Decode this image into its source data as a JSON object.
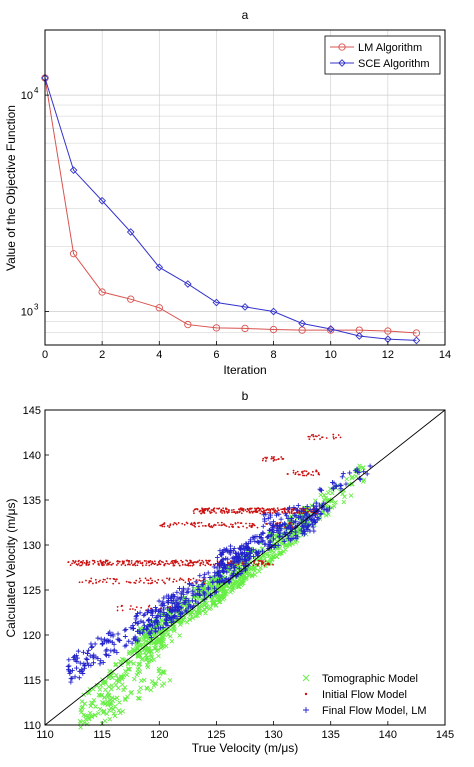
{
  "colors": {
    "lm": "#d9534f",
    "sce": "#3333cc",
    "tomographic": "#66ee44",
    "initial_flow": "#cc1111",
    "final_flow": "#2222cc",
    "grid": "#cccccc",
    "axis": "#000000",
    "identity_line": "#000000"
  },
  "chart_data": [
    {
      "id": "a",
      "type": "line",
      "title": "a",
      "xlabel": "Iteration",
      "ylabel": "Value of the Objective Function",
      "xlim": [
        0,
        14
      ],
      "ylim": [
        700,
        20000
      ],
      "yscale": "log",
      "xticks": [
        0,
        2,
        4,
        6,
        8,
        10,
        12,
        14
      ],
      "ytick_labels": [
        {
          "value": 1000,
          "base": "10",
          "exp": "3"
        },
        {
          "value": 10000,
          "base": "10",
          "exp": "4"
        }
      ],
      "grid": true,
      "legend_position": "top-right",
      "series": [
        {
          "name": "LM Algorithm",
          "marker": "circle",
          "color_key": "lm",
          "x": [
            0,
            1,
            2,
            3,
            4,
            5,
            6,
            7,
            8,
            9,
            10,
            11,
            12,
            13
          ],
          "y": [
            12000,
            1850,
            1230,
            1140,
            1040,
            870,
            840,
            835,
            825,
            820,
            820,
            820,
            812,
            795
          ]
        },
        {
          "name": "SCE Algorithm",
          "marker": "diamond",
          "color_key": "sce",
          "x": [
            0,
            1,
            2,
            3,
            4,
            5,
            6,
            7,
            8,
            9,
            10,
            11,
            12,
            13
          ],
          "y": [
            12000,
            4500,
            3250,
            2330,
            1600,
            1340,
            1100,
            1050,
            1000,
            880,
            830,
            770,
            745,
            735
          ]
        }
      ]
    },
    {
      "id": "b",
      "type": "scatter",
      "title": "b",
      "xlabel": "True Velocity (m/μs)",
      "ylabel": "Calculated Velocity (m/μs)",
      "xlim": [
        110,
        145
      ],
      "ylim": [
        110,
        145
      ],
      "xticks": [
        110,
        115,
        120,
        125,
        130,
        135,
        140,
        145
      ],
      "yticks": [
        110,
        115,
        120,
        125,
        130,
        135,
        140,
        145
      ],
      "grid": false,
      "legend_position": "bottom-right",
      "identity_line": [
        [
          110,
          110
        ],
        [
          145,
          145
        ]
      ],
      "series": [
        {
          "name": "Tomographic Model",
          "marker": "x",
          "color_key": "tomographic",
          "clusters": [
            {
              "x": [
                113,
                122
              ],
              "y": [
                111,
                122
              ],
              "n": 220
            },
            {
              "x": [
                118,
                128
              ],
              "y": [
                119,
                128
              ],
              "n": 350
            },
            {
              "x": [
                124,
                133
              ],
              "y": [
                124,
                133
              ],
              "n": 300
            },
            {
              "x": [
                131,
                138
              ],
              "y": [
                131,
                138
              ],
              "n": 90
            },
            {
              "x": [
                115,
                121
              ],
              "y": [
                111,
                116
              ],
              "n": 50
            }
          ]
        },
        {
          "name": "Initial Flow Model",
          "marker": "dot",
          "color_key": "initial_flow",
          "bands": [
            {
              "x": [
                123,
                134
              ],
              "y": 133.8,
              "n": 260
            },
            {
              "x": [
                120,
                132
              ],
              "y": 132.2,
              "n": 120
            },
            {
              "x": [
                112,
                130
              ],
              "y": 128.0,
              "n": 280
            },
            {
              "x": [
                113,
                124
              ],
              "y": 126.0,
              "n": 80
            },
            {
              "x": [
                116,
                122
              ],
              "y": 123.0,
              "n": 30
            },
            {
              "x": [
                131,
                134
              ],
              "y": 138.0,
              "n": 30
            },
            {
              "x": [
                129,
                131
              ],
              "y": 139.5,
              "n": 20
            },
            {
              "x": [
                133,
                136
              ],
              "y": 142.0,
              "n": 20
            }
          ]
        },
        {
          "name": "Final Flow Model, LM",
          "marker": "plus",
          "color_key": "final_flow",
          "clusters": [
            {
              "x": [
                112,
                122
              ],
              "y": [
                116,
                124
              ],
              "n": 170
            },
            {
              "x": [
                119,
                128
              ],
              "y": [
                121,
                129
              ],
              "n": 230
            },
            {
              "x": [
                125,
                134
              ],
              "y": [
                128,
                133
              ],
              "n": 220
            },
            {
              "x": [
                129,
                135
              ],
              "y": [
                132.5,
                134.5
              ],
              "n": 60
            },
            {
              "x": [
                134,
                138.5
              ],
              "y": [
                136,
                138.5
              ],
              "n": 25
            }
          ]
        }
      ]
    }
  ]
}
